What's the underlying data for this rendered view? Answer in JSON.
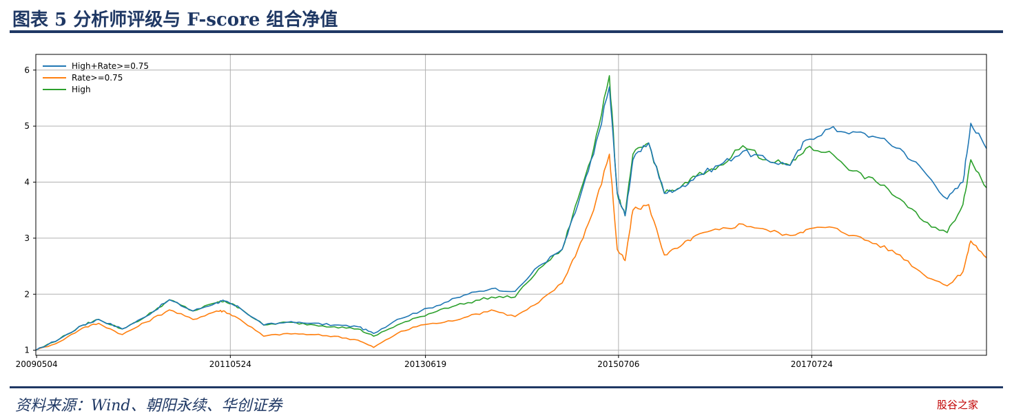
{
  "header": {
    "title": "图表 5   分析师评级与 F-score 组合净值"
  },
  "footer": {
    "source": "资料来源：Wind、朝阳永续、华创证券",
    "watermark": "股谷之家"
  },
  "colors": {
    "series_1": "#1f77b4",
    "series_2": "#ff7f0e",
    "series_3": "#2ca02c",
    "brand": "#1f3864"
  },
  "chart_data": {
    "type": "line",
    "title": "",
    "xlabel": "",
    "ylabel": "",
    "x_ticks": [
      "20090504",
      "20110524",
      "20130619",
      "20150706",
      "20170724"
    ],
    "y_ticks": [
      1,
      2,
      3,
      4,
      5,
      6
    ],
    "ylim": [
      0.91,
      6.28
    ],
    "grid": true,
    "legend_position": "top-left",
    "x": [
      "2009-05",
      "2009-08",
      "2009-11",
      "2010-01",
      "2010-04",
      "2010-07",
      "2010-10",
      "2011-01",
      "2011-04",
      "2011-05",
      "2011-07",
      "2011-10",
      "2012-01",
      "2012-04",
      "2012-07",
      "2012-10",
      "2012-12",
      "2013-03",
      "2013-06",
      "2013-09",
      "2013-12",
      "2014-03",
      "2014-06",
      "2014-09",
      "2014-12",
      "2015-02",
      "2015-04",
      "2015-06",
      "2015-07",
      "2015-08",
      "2015-09",
      "2015-11",
      "2016-01",
      "2016-03",
      "2016-05",
      "2016-08",
      "2016-11",
      "2017-02",
      "2017-05",
      "2017-07",
      "2017-10",
      "2018-01",
      "2018-04",
      "2018-07",
      "2018-10",
      "2019-01",
      "2019-03",
      "2019-04",
      "2019-06"
    ],
    "series": [
      {
        "name": "High+Rate>=0.75",
        "color": "#1f77b4",
        "values": [
          1.0,
          1.2,
          1.45,
          1.55,
          1.38,
          1.6,
          1.9,
          1.7,
          1.85,
          1.88,
          1.75,
          1.45,
          1.5,
          1.48,
          1.45,
          1.42,
          1.3,
          1.55,
          1.7,
          1.85,
          2.0,
          2.1,
          2.05,
          2.5,
          2.8,
          3.6,
          4.5,
          5.7,
          3.8,
          3.4,
          4.4,
          4.7,
          3.8,
          3.9,
          4.1,
          4.3,
          4.55,
          4.4,
          4.3,
          4.75,
          4.95,
          4.9,
          4.8,
          4.6,
          4.2,
          3.7,
          4.0,
          5.05,
          4.6
        ]
      },
      {
        "name": "Rate>=0.75",
        "color": "#ff7f0e",
        "values": [
          1.0,
          1.15,
          1.4,
          1.48,
          1.28,
          1.5,
          1.72,
          1.55,
          1.7,
          1.7,
          1.55,
          1.25,
          1.3,
          1.28,
          1.25,
          1.18,
          1.05,
          1.3,
          1.45,
          1.5,
          1.6,
          1.72,
          1.6,
          1.85,
          2.2,
          2.8,
          3.5,
          4.5,
          2.8,
          2.6,
          3.5,
          3.6,
          2.7,
          2.85,
          3.05,
          3.15,
          3.25,
          3.15,
          3.05,
          3.15,
          3.2,
          3.05,
          2.9,
          2.7,
          2.35,
          2.15,
          2.4,
          2.95,
          2.65
        ]
      },
      {
        "name": "High",
        "color": "#2ca02c",
        "values": [
          1.0,
          1.2,
          1.45,
          1.55,
          1.38,
          1.6,
          1.9,
          1.7,
          1.85,
          1.88,
          1.75,
          1.45,
          1.5,
          1.46,
          1.42,
          1.38,
          1.25,
          1.45,
          1.6,
          1.75,
          1.85,
          1.95,
          1.95,
          2.45,
          2.8,
          3.7,
          4.6,
          5.9,
          3.8,
          3.4,
          4.5,
          4.7,
          3.8,
          3.9,
          4.1,
          4.3,
          4.65,
          4.4,
          4.3,
          4.6,
          4.55,
          4.2,
          4.0,
          3.7,
          3.3,
          3.1,
          3.6,
          4.4,
          3.9
        ]
      }
    ]
  }
}
